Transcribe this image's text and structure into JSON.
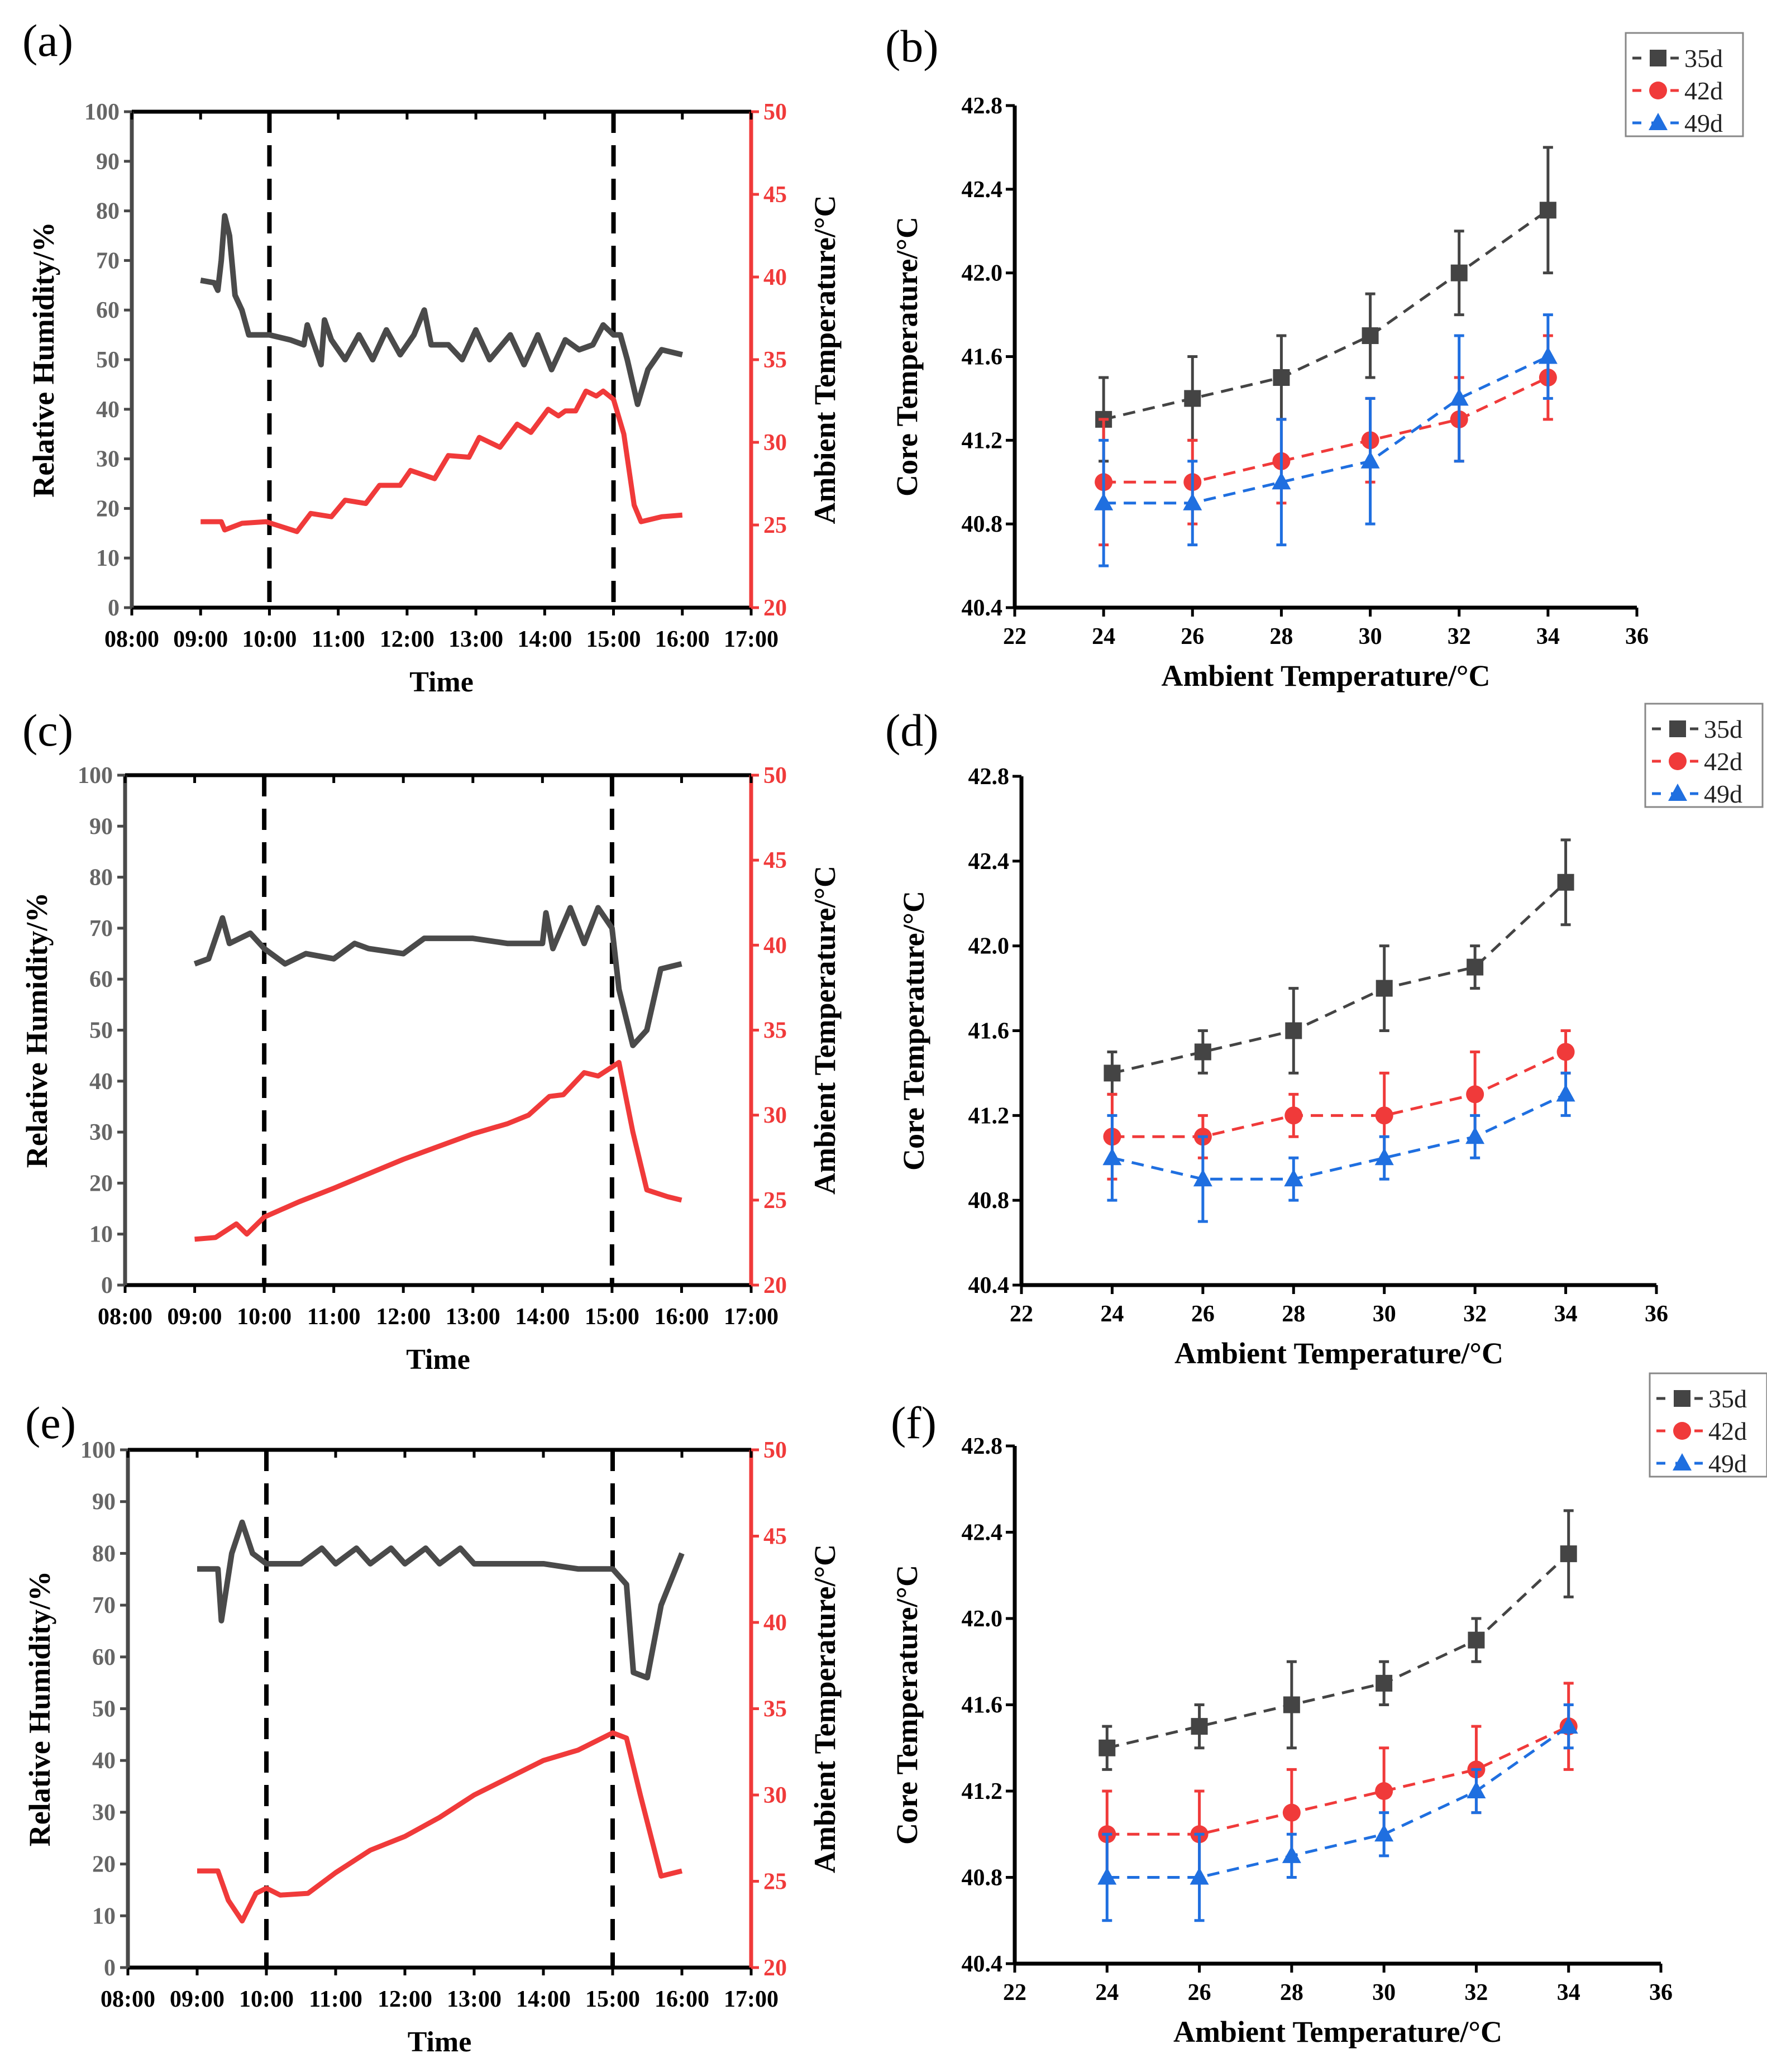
{
  "chart_data": [
    {
      "panel": "(a)",
      "type": "line",
      "xlabel": "Time",
      "ylabel": "Relative Humidity/%",
      "y2label": "Ambient Temperature/°C",
      "xticks": [
        "08:00",
        "09:00",
        "10:00",
        "11:00",
        "12:00",
        "13:00",
        "14:00",
        "15:00",
        "16:00",
        "17:00"
      ],
      "xlim": [
        8,
        17
      ],
      "ylim": [
        0,
        100
      ],
      "y2lim": [
        20,
        50
      ],
      "yticks": [
        "0",
        "10",
        "20",
        "30",
        "40",
        "50",
        "60",
        "70",
        "80",
        "90",
        "100"
      ],
      "y2ticks": [
        "20",
        "25",
        "30",
        "35",
        "40",
        "45",
        "50"
      ],
      "vlines": [
        10,
        15
      ],
      "humidity": [
        [
          9,
          66
        ],
        [
          9.2,
          65.5
        ],
        [
          9.25,
          64
        ],
        [
          9.3,
          70
        ],
        [
          9.35,
          79
        ],
        [
          9.42,
          75
        ],
        [
          9.5,
          63
        ],
        [
          9.6,
          60
        ],
        [
          9.7,
          55
        ],
        [
          10,
          55
        ],
        [
          10.3,
          54
        ],
        [
          10.5,
          53
        ],
        [
          10.55,
          57
        ],
        [
          10.75,
          49
        ],
        [
          10.8,
          58
        ],
        [
          10.9,
          54
        ],
        [
          11.1,
          50
        ],
        [
          11.3,
          55
        ],
        [
          11.5,
          50
        ],
        [
          11.7,
          56
        ],
        [
          11.9,
          51
        ],
        [
          12.1,
          55
        ],
        [
          12.25,
          60
        ],
        [
          12.35,
          53
        ],
        [
          12.6,
          53
        ],
        [
          12.8,
          50
        ],
        [
          13,
          56
        ],
        [
          13.2,
          50
        ],
        [
          13.5,
          55
        ],
        [
          13.7,
          49
        ],
        [
          13.9,
          55
        ],
        [
          14.1,
          48
        ],
        [
          14.3,
          54
        ],
        [
          14.5,
          52
        ],
        [
          14.7,
          53
        ],
        [
          14.85,
          57
        ],
        [
          15,
          55
        ],
        [
          15.1,
          55
        ],
        [
          15.2,
          50
        ],
        [
          15.35,
          41
        ],
        [
          15.5,
          48
        ],
        [
          15.6,
          50
        ],
        [
          15.7,
          52
        ],
        [
          16,
          51
        ]
      ],
      "temperature": [
        [
          9,
          25.2
        ],
        [
          9.3,
          25.2
        ],
        [
          9.35,
          24.7
        ],
        [
          9.6,
          25.1
        ],
        [
          9.95,
          25.2
        ],
        [
          10.4,
          24.6
        ],
        [
          10.6,
          25.7
        ],
        [
          10.9,
          25.5
        ],
        [
          11.1,
          26.5
        ],
        [
          11.4,
          26.3
        ],
        [
          11.6,
          27.4
        ],
        [
          11.9,
          27.4
        ],
        [
          12.05,
          28.3
        ],
        [
          12.4,
          27.8
        ],
        [
          12.6,
          29.2
        ],
        [
          12.9,
          29.1
        ],
        [
          13.05,
          30.3
        ],
        [
          13.35,
          29.7
        ],
        [
          13.6,
          31.1
        ],
        [
          13.8,
          30.6
        ],
        [
          14.05,
          32.0
        ],
        [
          14.2,
          31.6
        ],
        [
          14.3,
          31.9
        ],
        [
          14.45,
          31.9
        ],
        [
          14.6,
          33.1
        ],
        [
          14.75,
          32.8
        ],
        [
          14.85,
          33.1
        ],
        [
          15.0,
          32.6
        ],
        [
          15.15,
          30.5
        ],
        [
          15.3,
          26.2
        ],
        [
          15.4,
          25.2
        ],
        [
          15.7,
          25.5
        ],
        [
          16,
          25.6
        ]
      ]
    },
    {
      "panel": "(b)",
      "type": "scatter",
      "xlabel": "Ambient Temperature/°C",
      "ylabel": "Core Temperature/°C",
      "xlim": [
        22,
        36
      ],
      "ylim": [
        40.4,
        42.8
      ],
      "xticks": [
        "22",
        "24",
        "26",
        "28",
        "30",
        "32",
        "34",
        "36"
      ],
      "yticks": [
        "40.4",
        "40.8",
        "41.2",
        "41.6",
        "42.0",
        "42.4",
        "42.8"
      ],
      "x": [
        24,
        26,
        28,
        30,
        32,
        34
      ],
      "series": [
        {
          "name": "35d",
          "color": "#444444",
          "marker": "square",
          "values": [
            41.3,
            41.4,
            41.5,
            41.7,
            42.0,
            42.3
          ],
          "err": [
            0.2,
            0.2,
            0.2,
            0.2,
            0.2,
            0.3
          ]
        },
        {
          "name": "42d",
          "color": "#f03a3a",
          "marker": "circle",
          "values": [
            41.0,
            41.0,
            41.1,
            41.2,
            41.3,
            41.5
          ],
          "err": [
            0.3,
            0.2,
            0.2,
            0.2,
            0.2,
            0.2
          ]
        },
        {
          "name": "49d",
          "color": "#1f6fe0",
          "marker": "triangle",
          "values": [
            40.9,
            40.9,
            41.0,
            41.1,
            41.4,
            41.6
          ],
          "err": [
            0.3,
            0.2,
            0.3,
            0.3,
            0.3,
            0.2
          ]
        }
      ]
    },
    {
      "panel": "(c)",
      "type": "line",
      "xlabel": "Time",
      "ylabel": "Relative Humidity/%",
      "y2label": "Ambient Temperature/°C",
      "xticks": [
        "08:00",
        "09:00",
        "10:00",
        "11:00",
        "12:00",
        "13:00",
        "14:00",
        "15:00",
        "16:00",
        "17:00"
      ],
      "xlim": [
        8,
        17
      ],
      "ylim": [
        0,
        100
      ],
      "y2lim": [
        20,
        50
      ],
      "yticks": [
        "0",
        "10",
        "20",
        "30",
        "40",
        "50",
        "60",
        "70",
        "80",
        "90",
        "100"
      ],
      "y2ticks": [
        "20",
        "25",
        "30",
        "35",
        "40",
        "45",
        "50"
      ],
      "vlines": [
        10,
        15
      ],
      "humidity": [
        [
          9,
          63
        ],
        [
          9.2,
          64
        ],
        [
          9.3,
          68
        ],
        [
          9.4,
          72
        ],
        [
          9.5,
          67
        ],
        [
          9.8,
          69
        ],
        [
          10,
          66
        ],
        [
          10.3,
          63
        ],
        [
          10.6,
          65
        ],
        [
          11,
          64
        ],
        [
          11.3,
          67
        ],
        [
          11.5,
          66
        ],
        [
          12,
          65
        ],
        [
          12.3,
          68
        ],
        [
          12.5,
          68
        ],
        [
          13,
          68
        ],
        [
          13.5,
          67
        ],
        [
          14,
          67
        ],
        [
          14.05,
          73
        ],
        [
          14.15,
          66
        ],
        [
          14.4,
          74
        ],
        [
          14.6,
          67
        ],
        [
          14.8,
          74
        ],
        [
          15,
          70
        ],
        [
          15.1,
          58
        ],
        [
          15.3,
          47
        ],
        [
          15.5,
          50
        ],
        [
          15.7,
          62
        ],
        [
          16,
          63
        ]
      ],
      "temperature": [
        [
          9,
          22.7
        ],
        [
          9.3,
          22.8
        ],
        [
          9.6,
          23.6
        ],
        [
          9.75,
          23.0
        ],
        [
          10,
          24.0
        ],
        [
          10.5,
          24.9
        ],
        [
          11,
          25.7
        ],
        [
          12,
          27.4
        ],
        [
          13,
          28.9
        ],
        [
          13.5,
          29.5
        ],
        [
          13.8,
          30.0
        ],
        [
          14.1,
          31.1
        ],
        [
          14.3,
          31.2
        ],
        [
          14.6,
          32.5
        ],
        [
          14.8,
          32.3
        ],
        [
          15.1,
          33.1
        ],
        [
          15.3,
          29.0
        ],
        [
          15.5,
          25.6
        ],
        [
          15.8,
          25.2
        ],
        [
          16,
          25.0
        ]
      ]
    },
    {
      "panel": "(d)",
      "type": "scatter",
      "xlabel": "Ambient Temperature/°C",
      "ylabel": "Core Temperature/°C",
      "xlim": [
        22,
        36
      ],
      "ylim": [
        40.4,
        42.8
      ],
      "xticks": [
        "22",
        "24",
        "26",
        "28",
        "30",
        "32",
        "34",
        "36"
      ],
      "yticks": [
        "40.4",
        "40.8",
        "41.2",
        "41.6",
        "42.0",
        "42.4",
        "42.8"
      ],
      "x": [
        24,
        26,
        28,
        30,
        32,
        34
      ],
      "series": [
        {
          "name": "35d",
          "color": "#444444",
          "marker": "square",
          "values": [
            41.4,
            41.5,
            41.6,
            41.8,
            41.9,
            42.3
          ],
          "err": [
            0.1,
            0.1,
            0.2,
            0.2,
            0.1,
            0.2
          ]
        },
        {
          "name": "42d",
          "color": "#f03a3a",
          "marker": "circle",
          "values": [
            41.1,
            41.1,
            41.2,
            41.2,
            41.3,
            41.5
          ],
          "err": [
            0.2,
            0.1,
            0.1,
            0.2,
            0.2,
            0.1
          ]
        },
        {
          "name": "49d",
          "color": "#1f6fe0",
          "marker": "triangle",
          "values": [
            41.0,
            40.9,
            40.9,
            41.0,
            41.1,
            41.3
          ],
          "err": [
            0.2,
            0.2,
            0.1,
            0.1,
            0.1,
            0.1
          ]
        }
      ]
    },
    {
      "panel": "(e)",
      "type": "line",
      "xlabel": "Time",
      "ylabel": "Relative Humidity/%",
      "y2label": "Ambient Temperature/°C",
      "xticks": [
        "08:00",
        "09:00",
        "10:00",
        "11:00",
        "12:00",
        "13:00",
        "14:00",
        "15:00",
        "16:00",
        "17:00"
      ],
      "xlim": [
        8,
        17
      ],
      "ylim": [
        0,
        100
      ],
      "y2lim": [
        20,
        50
      ],
      "yticks": [
        "0",
        "10",
        "20",
        "30",
        "40",
        "50",
        "60",
        "70",
        "80",
        "90",
        "100"
      ],
      "y2ticks": [
        "20",
        "25",
        "30",
        "35",
        "40",
        "45",
        "50"
      ],
      "vlines": [
        10,
        15
      ],
      "humidity": [
        [
          9,
          77
        ],
        [
          9.3,
          77
        ],
        [
          9.35,
          67
        ],
        [
          9.5,
          80
        ],
        [
          9.65,
          86
        ],
        [
          9.8,
          80
        ],
        [
          10,
          78
        ],
        [
          10.5,
          78
        ],
        [
          10.8,
          81
        ],
        [
          11,
          78
        ],
        [
          11.3,
          81
        ],
        [
          11.5,
          78
        ],
        [
          11.8,
          81
        ],
        [
          12,
          78
        ],
        [
          12.3,
          81
        ],
        [
          12.5,
          78
        ],
        [
          12.8,
          81
        ],
        [
          13,
          78
        ],
        [
          13.5,
          78
        ],
        [
          14,
          78
        ],
        [
          14.5,
          77
        ],
        [
          15,
          77
        ],
        [
          15.2,
          74
        ],
        [
          15.3,
          57
        ],
        [
          15.5,
          56
        ],
        [
          15.7,
          70
        ],
        [
          16,
          80
        ]
      ],
      "temperature": [
        [
          9,
          25.6
        ],
        [
          9.3,
          25.6
        ],
        [
          9.45,
          23.9
        ],
        [
          9.65,
          22.7
        ],
        [
          9.85,
          24.3
        ],
        [
          10,
          24.6
        ],
        [
          10.2,
          24.2
        ],
        [
          10.6,
          24.3
        ],
        [
          11,
          25.5
        ],
        [
          11.5,
          26.8
        ],
        [
          12,
          27.6
        ],
        [
          12.5,
          28.7
        ],
        [
          13,
          30.0
        ],
        [
          13.5,
          31.0
        ],
        [
          14,
          32.0
        ],
        [
          14.5,
          32.6
        ],
        [
          15,
          33.6
        ],
        [
          15.2,
          33.3
        ],
        [
          15.4,
          30.0
        ],
        [
          15.7,
          25.3
        ],
        [
          16,
          25.6
        ]
      ]
    },
    {
      "panel": "(f)",
      "type": "scatter",
      "xlabel": "Ambient Temperature/°C",
      "ylabel": "Core Temperature/°C",
      "xlim": [
        22,
        36
      ],
      "ylim": [
        40.4,
        42.8
      ],
      "xticks": [
        "22",
        "24",
        "26",
        "28",
        "30",
        "32",
        "34",
        "36"
      ],
      "yticks": [
        "40.4",
        "40.8",
        "41.2",
        "41.6",
        "42.0",
        "42.4",
        "42.8"
      ],
      "x": [
        24,
        26,
        28,
        30,
        32,
        34
      ],
      "series": [
        {
          "name": "35d",
          "color": "#444444",
          "marker": "square",
          "values": [
            41.4,
            41.5,
            41.6,
            41.7,
            41.9,
            42.3
          ],
          "err": [
            0.1,
            0.1,
            0.2,
            0.1,
            0.1,
            0.2
          ]
        },
        {
          "name": "42d",
          "color": "#f03a3a",
          "marker": "circle",
          "values": [
            41.0,
            41.0,
            41.1,
            41.2,
            41.3,
            41.5
          ],
          "err": [
            0.2,
            0.2,
            0.2,
            0.2,
            0.2,
            0.2
          ]
        },
        {
          "name": "49d",
          "color": "#1f6fe0",
          "marker": "triangle",
          "values": [
            40.8,
            40.8,
            40.9,
            41.0,
            41.2,
            41.5
          ],
          "err": [
            0.2,
            0.2,
            0.1,
            0.1,
            0.1,
            0.1
          ]
        }
      ]
    }
  ]
}
